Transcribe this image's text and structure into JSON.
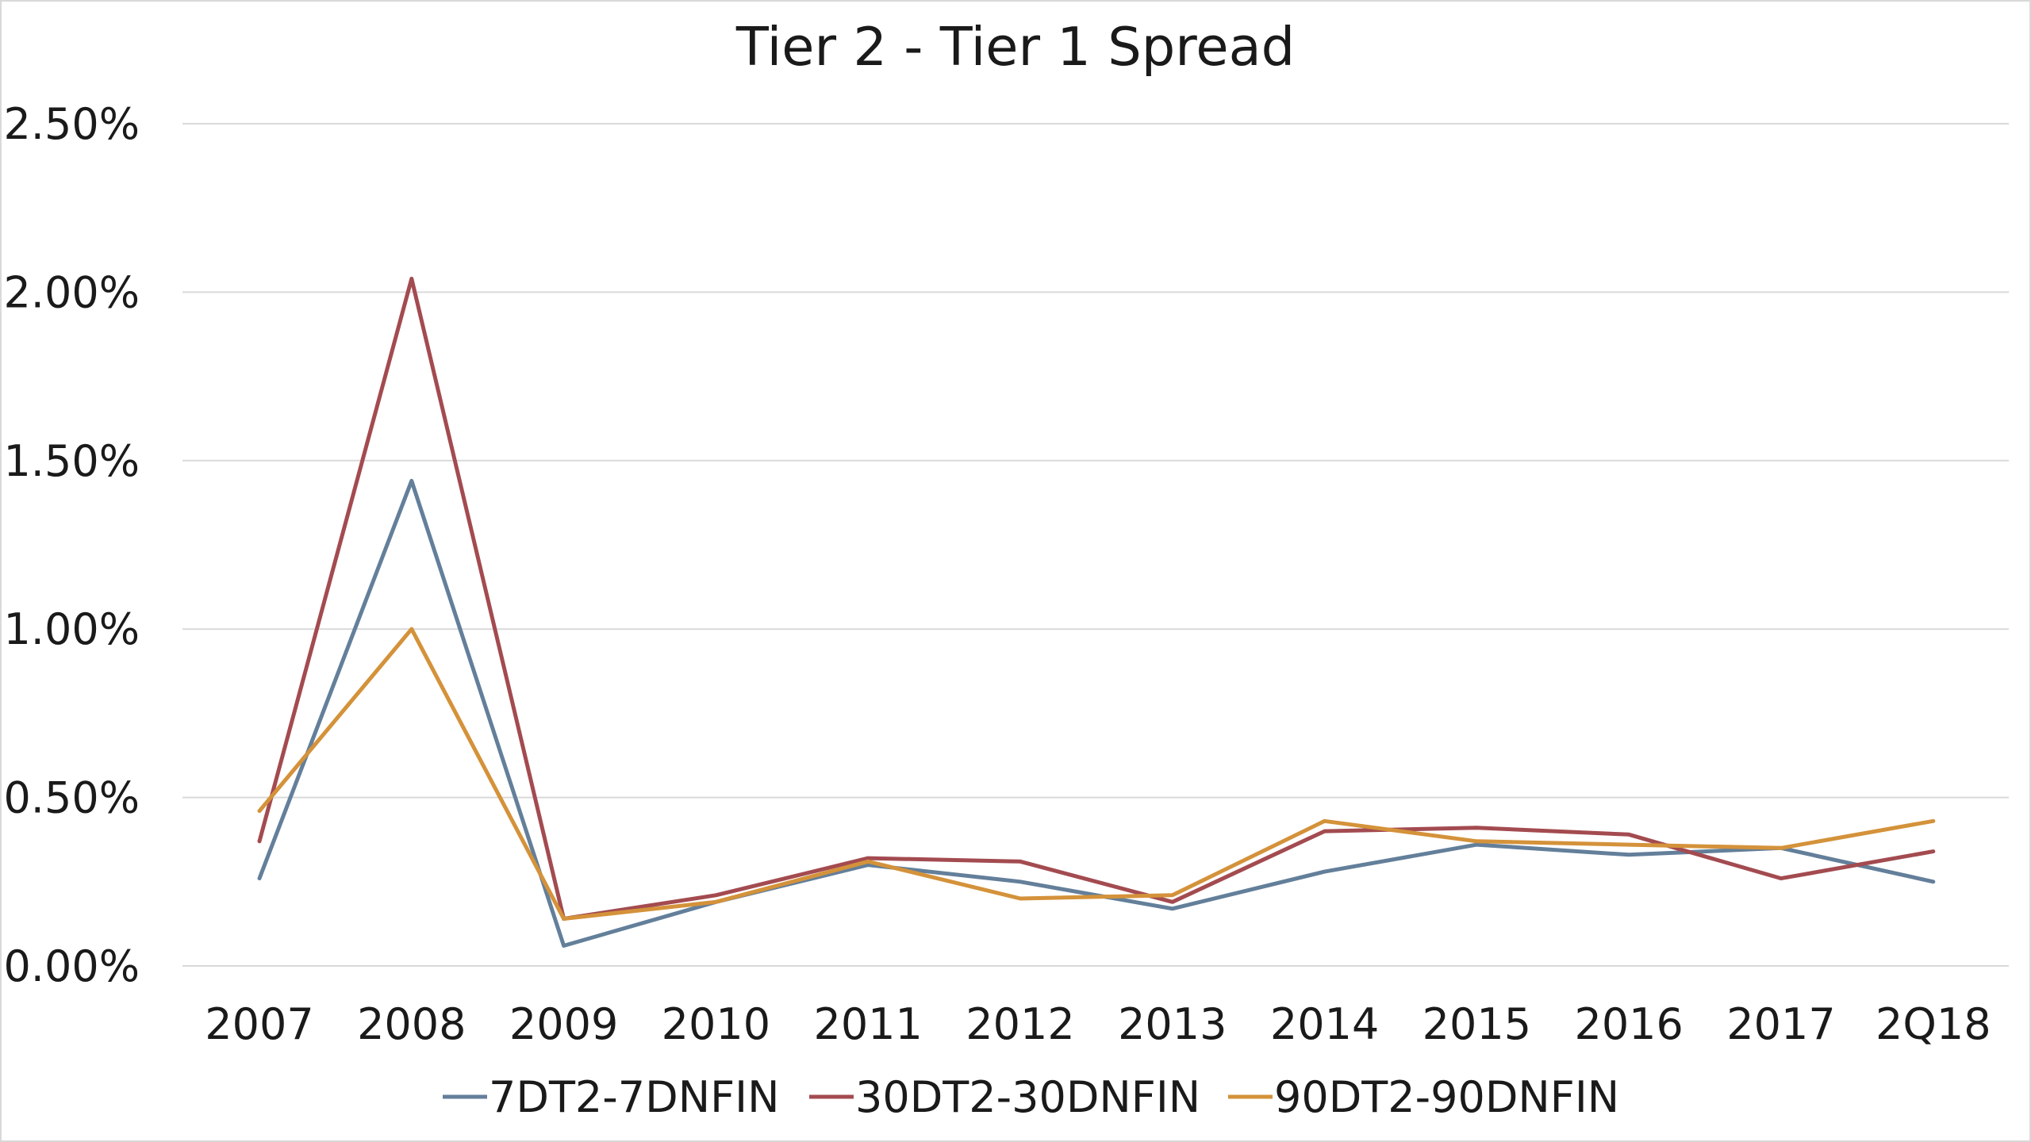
{
  "chart_data": {
    "type": "line",
    "title": "Tier 2 - Tier 1 Spread",
    "xlabel": "",
    "ylabel": "",
    "categories": [
      "2007",
      "2008",
      "2009",
      "2010",
      "2011",
      "2012",
      "2013",
      "2014",
      "2015",
      "2016",
      "2017",
      "2Q18"
    ],
    "ylim": [
      0,
      0.025
    ],
    "y_ticks": [
      0,
      0.005,
      0.01,
      0.015,
      0.02,
      0.025
    ],
    "y_tick_labels": [
      "0.00%",
      "0.50%",
      "1.00%",
      "1.50%",
      "2.00%",
      "2.50%"
    ],
    "grid": true,
    "legend_position": "bottom",
    "series": [
      {
        "name": "7DT2-7DNFIN",
        "color": "#637f9a",
        "values": [
          0.0026,
          0.0144,
          0.0006,
          0.0019,
          0.003,
          0.0025,
          0.0017,
          0.0028,
          0.0036,
          0.0033,
          0.0035,
          0.0025
        ]
      },
      {
        "name": "30DT2-30DNFIN",
        "color": "#a34b50",
        "values": [
          0.0037,
          0.0204,
          0.0014,
          0.0021,
          0.0032,
          0.0031,
          0.0019,
          0.004,
          0.0041,
          0.0039,
          0.0026,
          0.0034
        ]
      },
      {
        "name": "90DT2-90DNFIN",
        "color": "#d4923a",
        "values": [
          0.0046,
          0.01,
          0.0014,
          0.0019,
          0.0031,
          0.002,
          0.0021,
          0.0043,
          0.0037,
          0.0036,
          0.0035,
          0.0043
        ]
      }
    ]
  }
}
